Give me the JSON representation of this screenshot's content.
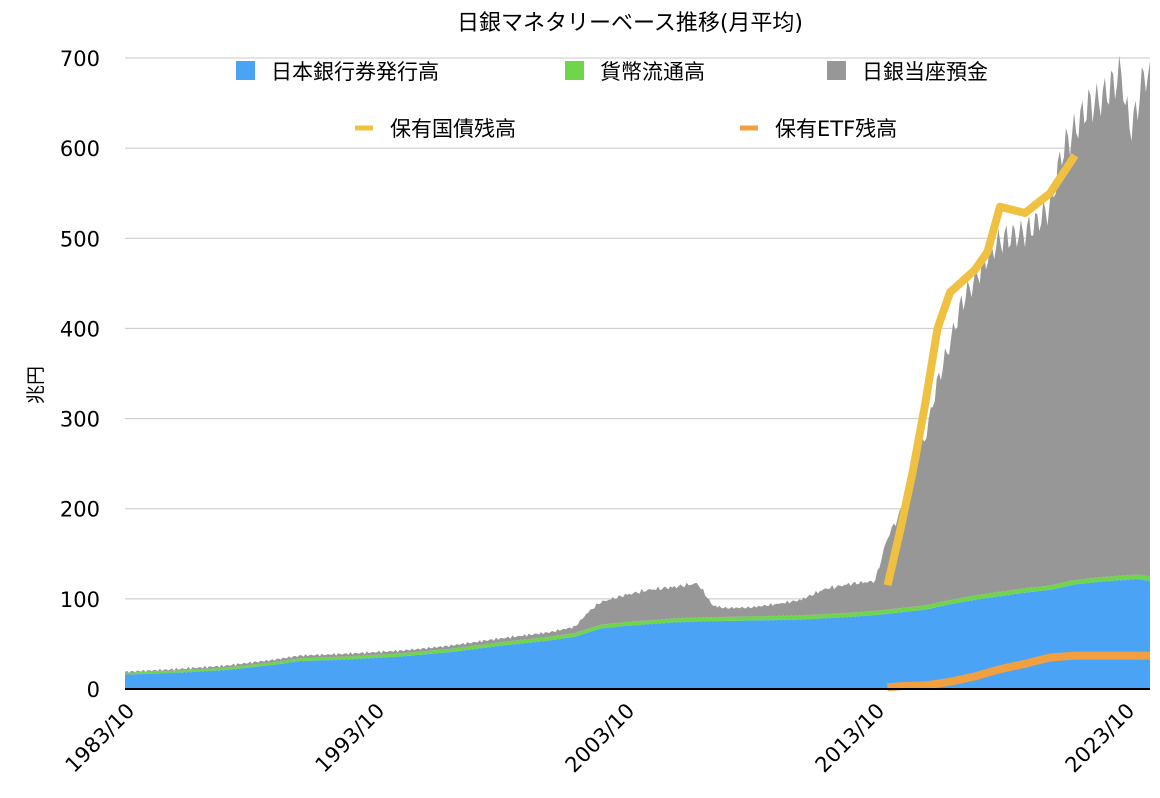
{
  "chart_data": {
    "type": "area",
    "title": "日銀マネタリーベース推移(月平均)",
    "ylabel": "兆円",
    "xlabel": "",
    "ylim": [
      0,
      700
    ],
    "yticks": [
      0,
      100,
      200,
      300,
      400,
      500,
      600,
      700
    ],
    "xlim": [
      1983.0,
      2024.0
    ],
    "xticks": [
      {
        "label": "1983/10",
        "x": 1983.75
      },
      {
        "label": "1993/10",
        "x": 1993.75
      },
      {
        "label": "2003/10",
        "x": 2003.75
      },
      {
        "label": "2013/10",
        "x": 2013.75
      },
      {
        "label": "2023/10",
        "x": 2023.75
      }
    ],
    "grid": "horizontal",
    "legend_position": "top",
    "stacked_series": [
      {
        "name": "日本銀行券発行高",
        "color": "#4aa3f5",
        "points": [
          [
            1983.0,
            16
          ],
          [
            1985.0,
            18
          ],
          [
            1987.0,
            21
          ],
          [
            1989.0,
            27
          ],
          [
            1990.0,
            31
          ],
          [
            1992.0,
            33
          ],
          [
            1994.0,
            36
          ],
          [
            1996.0,
            41
          ],
          [
            1998.0,
            48
          ],
          [
            2000.0,
            54
          ],
          [
            2001.0,
            58
          ],
          [
            2002.0,
            67
          ],
          [
            2003.0,
            70
          ],
          [
            2004.0,
            72
          ],
          [
            2005.0,
            74
          ],
          [
            2006.0,
            75
          ],
          [
            2008.0,
            76
          ],
          [
            2010.0,
            77
          ],
          [
            2012.0,
            80
          ],
          [
            2013.0,
            82
          ],
          [
            2014.0,
            85
          ],
          [
            2015.0,
            88
          ],
          [
            2016.0,
            94
          ],
          [
            2017.0,
            99
          ],
          [
            2018.0,
            103
          ],
          [
            2019.0,
            107
          ],
          [
            2020.0,
            110
          ],
          [
            2021.0,
            116
          ],
          [
            2022.0,
            119
          ],
          [
            2023.0,
            121
          ],
          [
            2023.5,
            122
          ],
          [
            2024.0,
            120
          ]
        ]
      },
      {
        "name": "貨幣流通高",
        "color": "#6fd64b",
        "points": [
          [
            1983.0,
            2
          ],
          [
            1990.0,
            3
          ],
          [
            2000.0,
            4
          ],
          [
            2010.0,
            4.5
          ],
          [
            2024.0,
            5
          ]
        ]
      },
      {
        "name": "日銀当座預金",
        "color": "#979797",
        "points": [
          [
            1983.0,
            1
          ],
          [
            1990.0,
            3
          ],
          [
            1995.0,
            3
          ],
          [
            2000.0,
            5
          ],
          [
            2001.0,
            7
          ],
          [
            2001.5,
            18
          ],
          [
            2002.0,
            25
          ],
          [
            2003.0,
            30
          ],
          [
            2004.0,
            34
          ],
          [
            2005.0,
            35
          ],
          [
            2005.9,
            38
          ],
          [
            2006.2,
            26
          ],
          [
            2006.5,
            13
          ],
          [
            2007.0,
            10
          ],
          [
            2008.0,
            10
          ],
          [
            2009.0,
            13
          ],
          [
            2010.0,
            17
          ],
          [
            2011.0,
            28
          ],
          [
            2012.0,
            32
          ],
          [
            2013.0,
            33
          ],
          [
            2013.5,
            80
          ],
          [
            2014.0,
            105
          ],
          [
            2014.5,
            150
          ],
          [
            2015.0,
            185
          ],
          [
            2015.5,
            245
          ],
          [
            2016.0,
            285
          ],
          [
            2016.5,
            330
          ],
          [
            2017.0,
            350
          ],
          [
            2017.5,
            375
          ],
          [
            2018.0,
            390
          ],
          [
            2018.5,
            393
          ],
          [
            2019.0,
            395
          ],
          [
            2019.5,
            405
          ],
          [
            2020.0,
            420
          ],
          [
            2020.5,
            480
          ],
          [
            2021.0,
            500
          ],
          [
            2021.5,
            525
          ],
          [
            2022.0,
            530
          ],
          [
            2022.5,
            545
          ],
          [
            2022.9,
            560
          ],
          [
            2023.0,
            520
          ],
          [
            2023.3,
            495
          ],
          [
            2023.6,
            535
          ],
          [
            2023.8,
            560
          ],
          [
            2024.0,
            550
          ]
        ]
      }
    ],
    "line_series": [
      {
        "name": "保有国債残高",
        "color": "#f0c040",
        "points": [
          [
            2013.5,
            115
          ],
          [
            2014.0,
            175
          ],
          [
            2014.5,
            240
          ],
          [
            2015.0,
            315
          ],
          [
            2015.5,
            400
          ],
          [
            2016.0,
            440
          ],
          [
            2017.0,
            465
          ],
          [
            2017.5,
            485
          ],
          [
            2018.0,
            535
          ],
          [
            2019.0,
            528
          ],
          [
            2020.0,
            550
          ],
          [
            2021.0,
            592
          ]
        ]
      },
      {
        "name": "保有ETF残高",
        "color": "#f0a040",
        "points": [
          [
            2013.5,
            2
          ],
          [
            2014.0,
            3
          ],
          [
            2015.0,
            4
          ],
          [
            2016.0,
            8
          ],
          [
            2017.0,
            14
          ],
          [
            2018.0,
            22
          ],
          [
            2019.0,
            28
          ],
          [
            2020.0,
            35
          ],
          [
            2021.0,
            37
          ],
          [
            2022.0,
            37
          ],
          [
            2023.0,
            37
          ],
          [
            2024.0,
            37
          ]
        ]
      }
    ]
  }
}
